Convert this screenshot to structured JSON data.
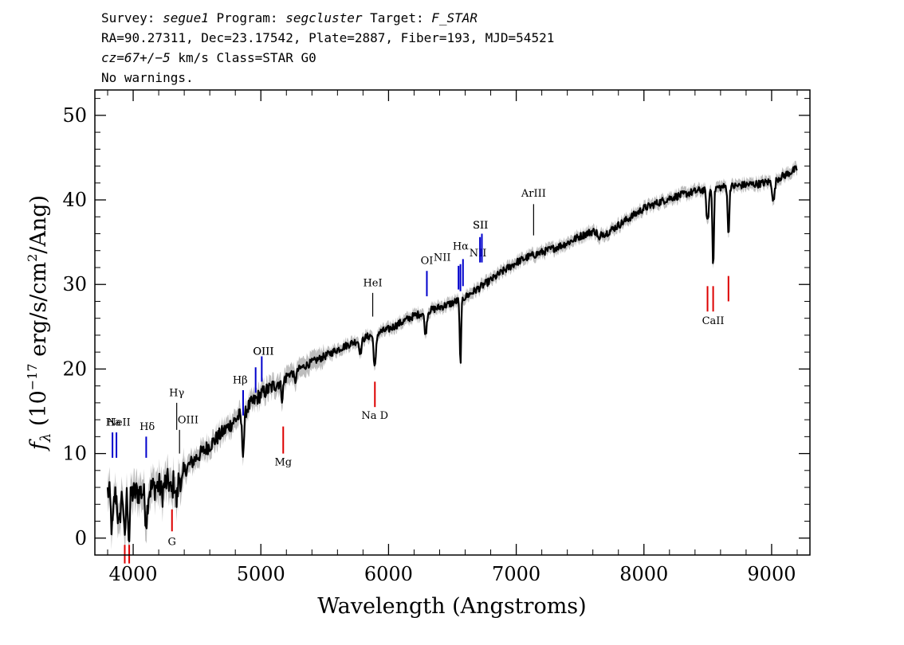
{
  "header": {
    "line1": {
      "survey_label": "Survey: ",
      "survey": "segue1",
      "program_label": " Program: ",
      "program": "segcluster",
      "target_label": " Target: ",
      "target": "F_STAR"
    },
    "line2": "RA=90.27311, Dec=23.17542, Plate=2887, Fiber=193, MJD=54521",
    "line3": {
      "cz": "cz=67+/−5",
      "rest": " km/s Class=STAR G0"
    },
    "line4": "No warnings."
  },
  "chart_data": {
    "type": "line",
    "title": "",
    "xlabel": "Wavelength (Angstroms)",
    "ylabel_parts": {
      "f": "f",
      "sub": "λ",
      "a": " (10",
      "exp1": "−17",
      "b": " erg/s/cm",
      "exp2": "2",
      "c": "/Ang)"
    },
    "xlim": [
      3700,
      9300
    ],
    "ylim": [
      -2,
      53
    ],
    "xticks": [
      4000,
      5000,
      6000,
      7000,
      8000,
      9000
    ],
    "yticks": [
      0,
      10,
      20,
      30,
      40,
      50
    ],
    "colors": {
      "flux": "#000000",
      "error_band": "#bdbdbd",
      "emission": "#0000cc",
      "absorption": "#dd0000",
      "sky": "#000000"
    },
    "continuum": [
      [
        3800,
        5.5
      ],
      [
        3900,
        5.0
      ],
      [
        4000,
        5.3
      ],
      [
        4100,
        5.6
      ],
      [
        4200,
        6.2
      ],
      [
        4300,
        6.8
      ],
      [
        4400,
        8.0
      ],
      [
        4500,
        9.6
      ],
      [
        4600,
        11.0
      ],
      [
        4700,
        12.5
      ],
      [
        4800,
        14.0
      ],
      [
        4900,
        15.5
      ],
      [
        5000,
        17.0
      ],
      [
        5100,
        18.0
      ],
      [
        5200,
        19.2
      ],
      [
        5300,
        20.0
      ],
      [
        5400,
        20.8
      ],
      [
        5500,
        21.5
      ],
      [
        5600,
        22.3
      ],
      [
        5700,
        23.0
      ],
      [
        5800,
        23.6
      ],
      [
        5900,
        24.2
      ],
      [
        6000,
        24.7
      ],
      [
        6100,
        25.5
      ],
      [
        6200,
        26.3
      ],
      [
        6300,
        26.8
      ],
      [
        6400,
        27.3
      ],
      [
        6500,
        27.8
      ],
      [
        6600,
        28.5
      ],
      [
        6700,
        29.5
      ],
      [
        6800,
        30.5
      ],
      [
        6900,
        31.6
      ],
      [
        7000,
        32.6
      ],
      [
        7100,
        33.3
      ],
      [
        7200,
        33.8
      ],
      [
        7300,
        34.3
      ],
      [
        7400,
        34.9
      ],
      [
        7500,
        35.7
      ],
      [
        7600,
        36.3
      ],
      [
        7700,
        36.0
      ],
      [
        7800,
        37.0
      ],
      [
        7900,
        38.0
      ],
      [
        8000,
        39.0
      ],
      [
        8100,
        39.6
      ],
      [
        8200,
        40.2
      ],
      [
        8300,
        40.6
      ],
      [
        8400,
        41.0
      ],
      [
        8500,
        41.3
      ],
      [
        8600,
        41.5
      ],
      [
        8700,
        41.6
      ],
      [
        8800,
        41.8
      ],
      [
        8900,
        41.9
      ],
      [
        9000,
        42.2
      ],
      [
        9100,
        42.9
      ],
      [
        9200,
        43.7
      ]
    ],
    "absorption_dips": [
      [
        3835,
        4.5
      ],
      [
        3889,
        4.0
      ],
      [
        3934,
        6.0
      ],
      [
        3968,
        5.5
      ],
      [
        4102,
        3.5
      ],
      [
        4227,
        1.2
      ],
      [
        4300,
        1.5
      ],
      [
        4340,
        3.0
      ],
      [
        4383,
        1.5
      ],
      [
        4861,
        4.5
      ],
      [
        5167,
        2.0
      ],
      [
        5269,
        1.2
      ],
      [
        5780,
        1.5
      ],
      [
        5893,
        4.0
      ],
      [
        6290,
        2.5
      ],
      [
        6563,
        7.5
      ],
      [
        7650,
        1.0
      ],
      [
        8498,
        4.0
      ],
      [
        8542,
        9.0
      ],
      [
        8662,
        6.0
      ],
      [
        9015,
        2.5
      ]
    ],
    "line_markers": [
      {
        "label": "NeII",
        "x": 3869,
        "color": "emission",
        "y0": 9.5,
        "y1": 12.5,
        "lx": 3888,
        "ly": 13.3
      },
      {
        "label": "Ha",
        "x": 3838,
        "color": "emission",
        "y0": 9.5,
        "y1": 12.5,
        "lx": 3845,
        "ly": 13.3
      },
      {
        "label": "Hδ",
        "x": 4102,
        "color": "emission",
        "y0": 9.5,
        "y1": 12.0,
        "lx": 4110,
        "ly": 12.8
      },
      {
        "label": "Hγ",
        "x": 4341,
        "color": "sky",
        "y0": 12.8,
        "y1": 16.0,
        "lx": 4341,
        "ly": 16.8
      },
      {
        "label": "OIII",
        "x": 4363,
        "color": "sky",
        "y0": 10.0,
        "y1": 12.8,
        "lx": 4430,
        "ly": 13.6
      },
      {
        "label": "Hβ",
        "x": 4861,
        "color": "emission",
        "y0": 14.5,
        "y1": 17.5,
        "lx": 4838,
        "ly": 18.3
      },
      {
        "label": "OIII",
        "x": 4959,
        "color": "emission",
        "y0": 17.2,
        "y1": 20.2,
        "lx": 5020,
        "ly": 21.7
      },
      {
        "label": "OIII",
        "x": 5007,
        "color": "emission",
        "y0": 18.5,
        "y1": 21.5,
        "lx": 5020,
        "ly": 21.7
      },
      {
        "label": "HeI",
        "x": 5876,
        "color": "sky",
        "y0": 26.2,
        "y1": 29.0,
        "lx": 5876,
        "ly": 29.8
      },
      {
        "label": "OI",
        "x": 6300,
        "color": "emission",
        "y0": 28.6,
        "y1": 31.6,
        "lx": 6300,
        "ly": 32.4
      },
      {
        "label": "NII",
        "x": 6548,
        "color": "emission",
        "y0": 29.4,
        "y1": 32.2,
        "lx": 6420,
        "ly": 32.8
      },
      {
        "label": "Hα",
        "x": 6563,
        "color": "emission",
        "y0": 29.2,
        "y1": 32.4,
        "lx": 6565,
        "ly": 34.1
      },
      {
        "label": "NII",
        "x": 6583,
        "color": "emission",
        "y0": 29.8,
        "y1": 33.0,
        "lx": 6700,
        "ly": 33.3
      },
      {
        "label": "SII",
        "x": 6716,
        "color": "emission",
        "y0": 32.6,
        "y1": 35.6,
        "lx": 6720,
        "ly": 36.6
      },
      {
        "label": "SII",
        "x": 6731,
        "color": "emission",
        "y0": 32.6,
        "y1": 36.0,
        "lx": 6720,
        "ly": 36.6
      },
      {
        "label": "ArIII",
        "x": 7136,
        "color": "sky",
        "y0": 35.8,
        "y1": 39.5,
        "lx": 7136,
        "ly": 40.4
      },
      {
        "label": "G",
        "x": 4304,
        "color": "absorption",
        "y0": 0.8,
        "y1": 3.4,
        "lx": 4304,
        "ly": -0.8
      },
      {
        "label": "",
        "x": 3934,
        "color": "absorption",
        "y0": -3.0,
        "y1": -0.8,
        "lx": 0,
        "ly": 0
      },
      {
        "label": "",
        "x": 3969,
        "color": "absorption",
        "y0": -3.0,
        "y1": -0.8,
        "lx": 0,
        "ly": 0
      },
      {
        "label": "Mg",
        "x": 5175,
        "color": "absorption",
        "y0": 10.0,
        "y1": 13.2,
        "lx": 5175,
        "ly": 8.6
      },
      {
        "label": "Na D",
        "x": 5893,
        "color": "absorption",
        "y0": 15.5,
        "y1": 18.5,
        "lx": 5893,
        "ly": 14.1
      },
      {
        "label": "CaII",
        "x": 8498,
        "color": "absorption",
        "y0": 26.8,
        "y1": 29.8,
        "lx": 8542,
        "ly": 25.3
      },
      {
        "label": "",
        "x": 8542,
        "color": "absorption",
        "y0": 26.8,
        "y1": 29.8,
        "lx": 0,
        "ly": 0
      },
      {
        "label": "",
        "x": 8662,
        "color": "absorption",
        "y0": 28.0,
        "y1": 31.0,
        "lx": 0,
        "ly": 0
      }
    ]
  }
}
